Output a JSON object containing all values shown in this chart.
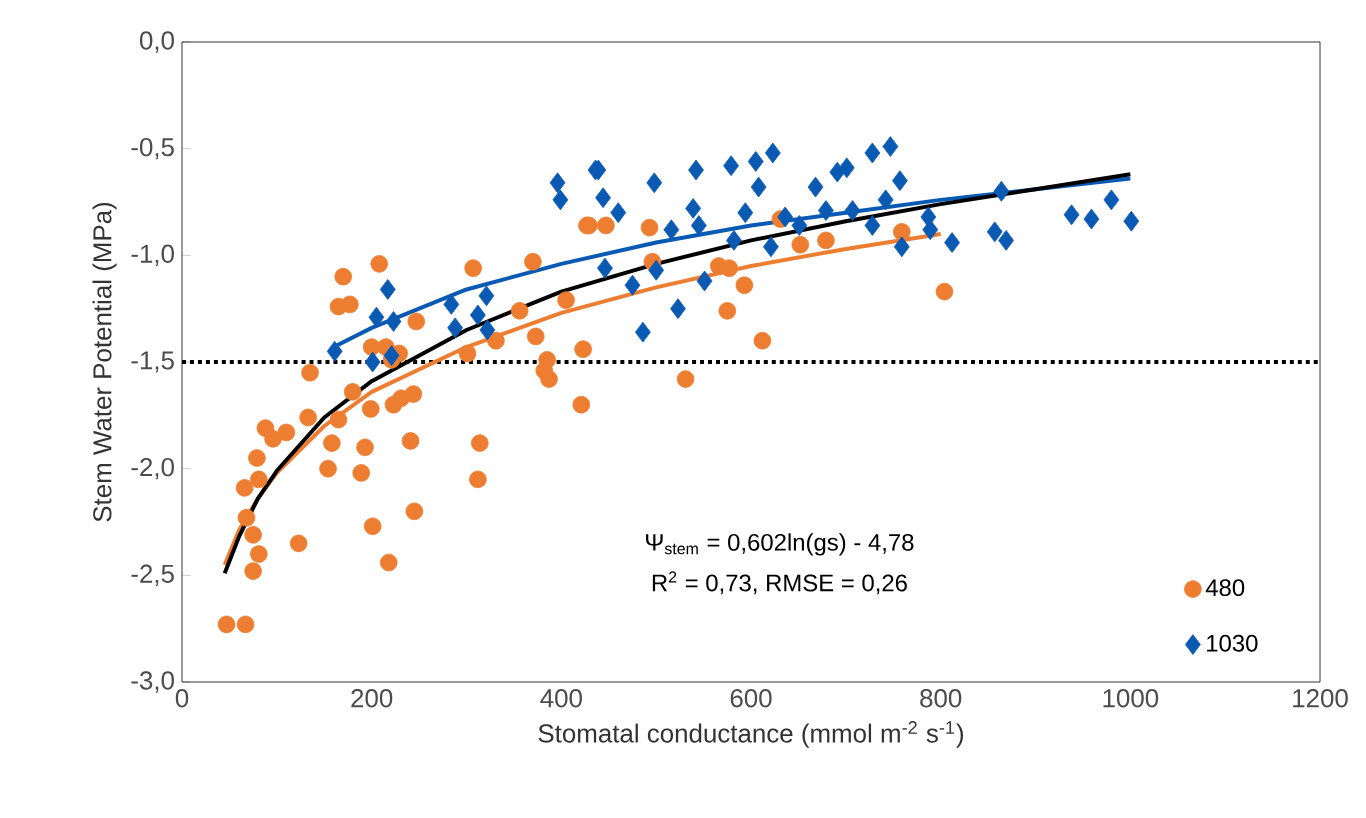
{
  "chart_data": {
    "type": "scatter",
    "xlabel": "Stomatal conductance (mmol m$^{-2}$ s$^{-1}$)",
    "ylabel": "Stem Water Potential (MPa)",
    "xlim": [
      0,
      1200
    ],
    "ylim": [
      -3,
      0
    ],
    "xticks": [
      0,
      200,
      400,
      600,
      800,
      1000,
      1200
    ],
    "yticks": [
      {
        "value": 0,
        "label": "0,0"
      },
      {
        "value": -0.5,
        "label": "-0,5"
      },
      {
        "value": -1,
        "label": "-1,0"
      },
      {
        "value": -1.5,
        "label": "-1,5"
      },
      {
        "value": -2,
        "label": "-2,0"
      },
      {
        "value": -2.5,
        "label": "-2,5"
      },
      {
        "value": -3,
        "label": "-3,0"
      }
    ],
    "legend": "bottom right",
    "annotations": [
      "Ψ$_{stem}$ = 0,602ln(gs) - 4,78",
      "R$^{2}$ = 0,73, RMSE = 0,26"
    ],
    "ref_lines": [
      {
        "axis": "y",
        "value": -1.5,
        "line_style": "dotted",
        "color": "#000000"
      }
    ],
    "series": [
      {
        "name": "480",
        "marker": "circle",
        "color": "#ed7d31",
        "x": [
          47,
          67,
          75,
          81,
          75,
          68,
          66,
          81,
          79,
          88,
          96,
          110,
          123,
          133,
          135,
          158,
          154,
          165,
          180,
          189,
          193,
          201,
          218,
          199,
          223,
          231,
          244,
          241,
          245,
          314,
          312,
          247,
          170,
          165,
          177,
          208,
          200,
          215,
          221,
          229,
          307,
          301,
          331,
          356,
          373,
          370,
          405,
          382,
          385,
          387,
          423,
          421,
          429,
          427,
          447,
          493,
          496,
          531,
          566,
          577,
          575,
          593,
          612,
          631,
          652,
          679,
          759,
          804
        ],
        "values": [
          -2.73,
          -2.73,
          -2.48,
          -2.4,
          -2.31,
          -2.23,
          -2.09,
          -2.05,
          -1.95,
          -1.81,
          -1.86,
          -1.83,
          -2.35,
          -1.76,
          -1.55,
          -1.88,
          -2.0,
          -1.77,
          -1.64,
          -2.02,
          -1.9,
          -2.27,
          -2.44,
          -1.72,
          -1.7,
          -1.67,
          -1.65,
          -1.87,
          -2.2,
          -1.88,
          -2.05,
          -1.31,
          -1.1,
          -1.24,
          -1.23,
          -1.04,
          -1.43,
          -1.43,
          -1.49,
          -1.46,
          -1.06,
          -1.46,
          -1.4,
          -1.26,
          -1.38,
          -1.03,
          -1.21,
          -1.54,
          -1.49,
          -1.58,
          -1.44,
          -1.7,
          -0.86,
          -0.86,
          -0.86,
          -0.87,
          -1.03,
          -1.58,
          -1.05,
          -1.06,
          -1.26,
          -1.14,
          -1.4,
          -0.83,
          -0.95,
          -0.93,
          -0.89,
          -1.17
        ]
      },
      {
        "name": "1030",
        "marker": "diamond",
        "color": "#0a5ab4",
        "x": [
          161,
          201,
          221,
          205,
          217,
          223,
          284,
          288,
          312,
          321,
          322,
          396,
          399,
          436,
          439,
          444,
          460,
          498,
          446,
          475,
          486,
          500,
          516,
          523,
          539,
          542,
          545,
          551,
          579,
          582,
          594,
          605,
          608,
          623,
          621,
          636,
          651,
          668,
          679,
          691,
          701,
          707,
          728,
          747,
          757,
          728,
          742,
          759,
          787,
          789,
          812,
          864,
          857,
          869,
          938,
          959,
          980,
          1001
        ],
        "values": [
          -1.45,
          -1.5,
          -1.47,
          -1.29,
          -1.16,
          -1.31,
          -1.23,
          -1.34,
          -1.28,
          -1.19,
          -1.35,
          -0.66,
          -0.74,
          -0.6,
          -0.6,
          -0.73,
          -0.8,
          -0.66,
          -1.06,
          -1.14,
          -1.36,
          -1.07,
          -0.88,
          -1.25,
          -0.78,
          -0.6,
          -0.86,
          -1.12,
          -0.58,
          -0.93,
          -0.8,
          -0.56,
          -0.68,
          -0.52,
          -0.96,
          -0.82,
          -0.86,
          -0.68,
          -0.79,
          -0.61,
          -0.59,
          -0.79,
          -0.52,
          -0.49,
          -0.65,
          -0.86,
          -0.74,
          -0.96,
          -0.82,
          -0.88,
          -0.94,
          -0.7,
          -0.89,
          -0.93,
          -0.81,
          -0.83,
          -0.74,
          -0.84
        ]
      },
      {
        "type": "line",
        "marker": "none",
        "color": "#ed7d31",
        "x": [
          45,
          60,
          80,
          100,
          150,
          200,
          300,
          400,
          500,
          600,
          700,
          800
        ],
        "values": [
          -2.45,
          -2.29,
          -2.14,
          -2.02,
          -1.8,
          -1.64,
          -1.43,
          -1.27,
          -1.15,
          -1.05,
          -0.97,
          -0.9
        ]
      },
      {
        "type": "line",
        "marker": "none",
        "color": "#0a5ab4",
        "x": [
          160,
          200,
          300,
          400,
          500,
          600,
          700,
          800,
          900,
          1000
        ],
        "values": [
          -1.43,
          -1.34,
          -1.16,
          -1.04,
          -0.94,
          -0.86,
          -0.8,
          -0.74,
          -0.69,
          -0.64
        ]
      },
      {
        "type": "line",
        "marker": "none",
        "color": "#000000",
        "x": [
          45,
          60,
          80,
          100,
          150,
          200,
          300,
          400,
          500,
          600,
          700,
          800,
          900,
          1000
        ],
        "values": [
          -2.49,
          -2.32,
          -2.14,
          -2.01,
          -1.76,
          -1.59,
          -1.35,
          -1.17,
          -1.04,
          -0.93,
          -0.84,
          -0.76,
          -0.69,
          -0.62
        ]
      }
    ]
  }
}
